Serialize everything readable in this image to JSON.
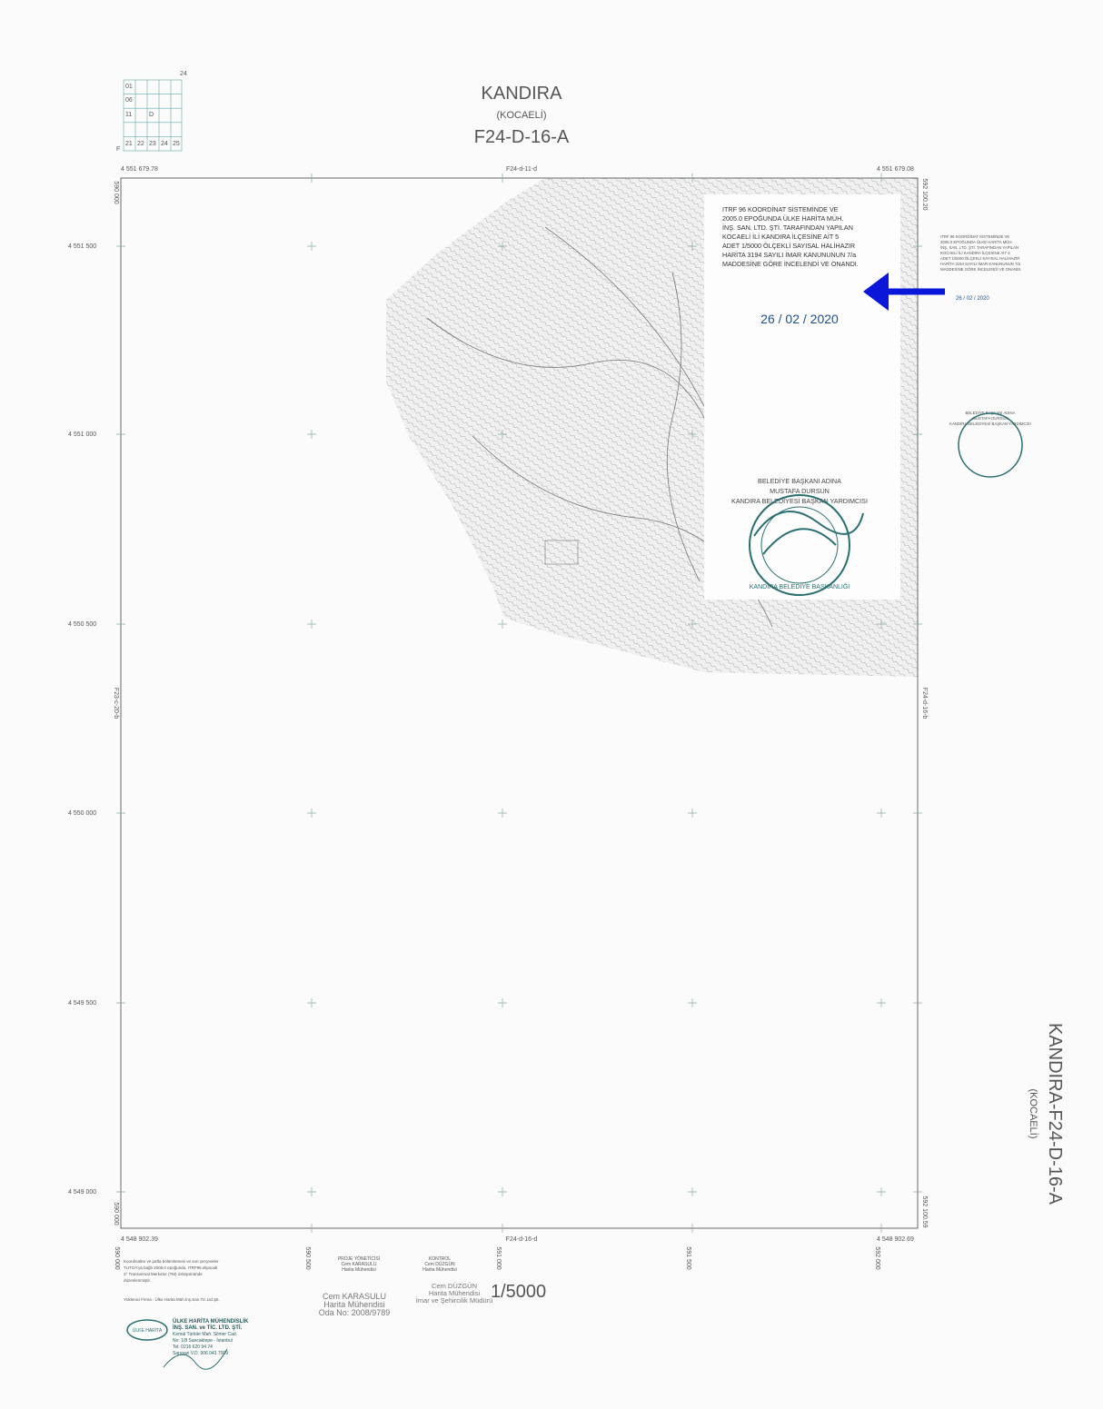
{
  "header": {
    "title": "KANDIRA",
    "province": "(KOCAELİ)",
    "sheet": "F24-D-16-A"
  },
  "index_grid": {
    "top": "24",
    "corner": "F",
    "cells": [
      "01",
      "06",
      "11",
      "D",
      "21",
      "22",
      "23",
      "24",
      "25"
    ]
  },
  "corners": {
    "top_left": "4 551 679.78",
    "top_right": "4 551 679.08",
    "bottom_left": "4 548 902.39",
    "bottom_right": "4 548 902.69"
  },
  "neighbors": {
    "top": "F24-d-11-d",
    "bottom": "F24-d-16-d",
    "left": "F23-c-20-b",
    "right": "F24-d-16-b"
  },
  "northings": [
    "4 551 500",
    "4 551 000",
    "4 550 500",
    "4 550 000",
    "4 549 500",
    "4 549 000"
  ],
  "eastings": {
    "left_top": "590 000",
    "left_bottom": "590 000",
    "right_top": "592 100.20",
    "right_bottom": "592 100.59",
    "bottom": [
      "590 000",
      "590 500",
      "591 000",
      "591 500",
      "592 000"
    ]
  },
  "approval": {
    "lines": [
      "ITRF 96 KOORDİNAT SİSTEMİNDE VE",
      "2005.0 EPOĞUNDA ÜLKE HARİTA MÜH.",
      "İNŞ. SAN. LTD. ŞTİ. TARAFINDAN YAPILAN",
      "KOCAELİ İLİ KANDIRA İLÇESİNE AİT 5",
      "ADET 1/5000 ÖLÇEKLİ SAYISAL HALİHAZIR",
      "HARİTA 3194 SAYILI İMAR KANUNUNUN 7/a",
      "MADDESİNE GÖRE İNCELENDİ VE ONANDI."
    ],
    "date": "26 / 02 / 2020",
    "signature": [
      "BELEDİYE BAŞKANI ADINA",
      "MUSTAFA DURSUN",
      "KANDIRA BELEDİYESİ BAŞKAN YARDIMCISI"
    ],
    "stamp": "KANDIRA BELEDİYE BAŞKANLIĞI"
  },
  "side": {
    "sheet": "KANDIRA-F24-D-16-A",
    "province": "(KOCAELİ)"
  },
  "footer": {
    "notes": [
      "Koordinatlar ve pafta bölümlemesi ve son çerçeveler",
      "TUTGA'ya bağlı 2005.0 epoğunda, ITRF96 elipsoidi",
      "3° Transversal Merkator (TM) izdüşümünde",
      "düzenlenmiştir."
    ],
    "contractor": "Yüklenici Firma : Ülke Harita Müh.İnş.San.Tic.Ltd.Şti.",
    "project_manager": [
      "PROJE YÖNETİCİSİ",
      "Cem KARASULU",
      "Harita Mühendisi"
    ],
    "control": [
      "KONTROL",
      "Cem DÜZGÜN",
      "Harita Mühendisi"
    ],
    "stamp_left": [
      "Cem KARASULU",
      "Harita Mühendisi",
      "Oda No: 2008/9789"
    ],
    "stamp_right": [
      "Cem DÜZGÜN",
      "Harita Mühendisi",
      "İmar ve Şehircilik Müdürü"
    ],
    "scale": "1/5000",
    "company": [
      "ÜLKE HARİTA MÜHENDİSLİK",
      "İNŞ. SAN. ve TİC. LTD. ŞTİ.",
      "Kemal Türkler Mah. Silmer Cad.",
      "No: 1/8 Sancaktepe - İstanbul",
      "Tel: 0216 620 94 74",
      "Sarıgazi V.D. 906 043 7009"
    ],
    "logo": "ÜLKE HARİTA"
  }
}
